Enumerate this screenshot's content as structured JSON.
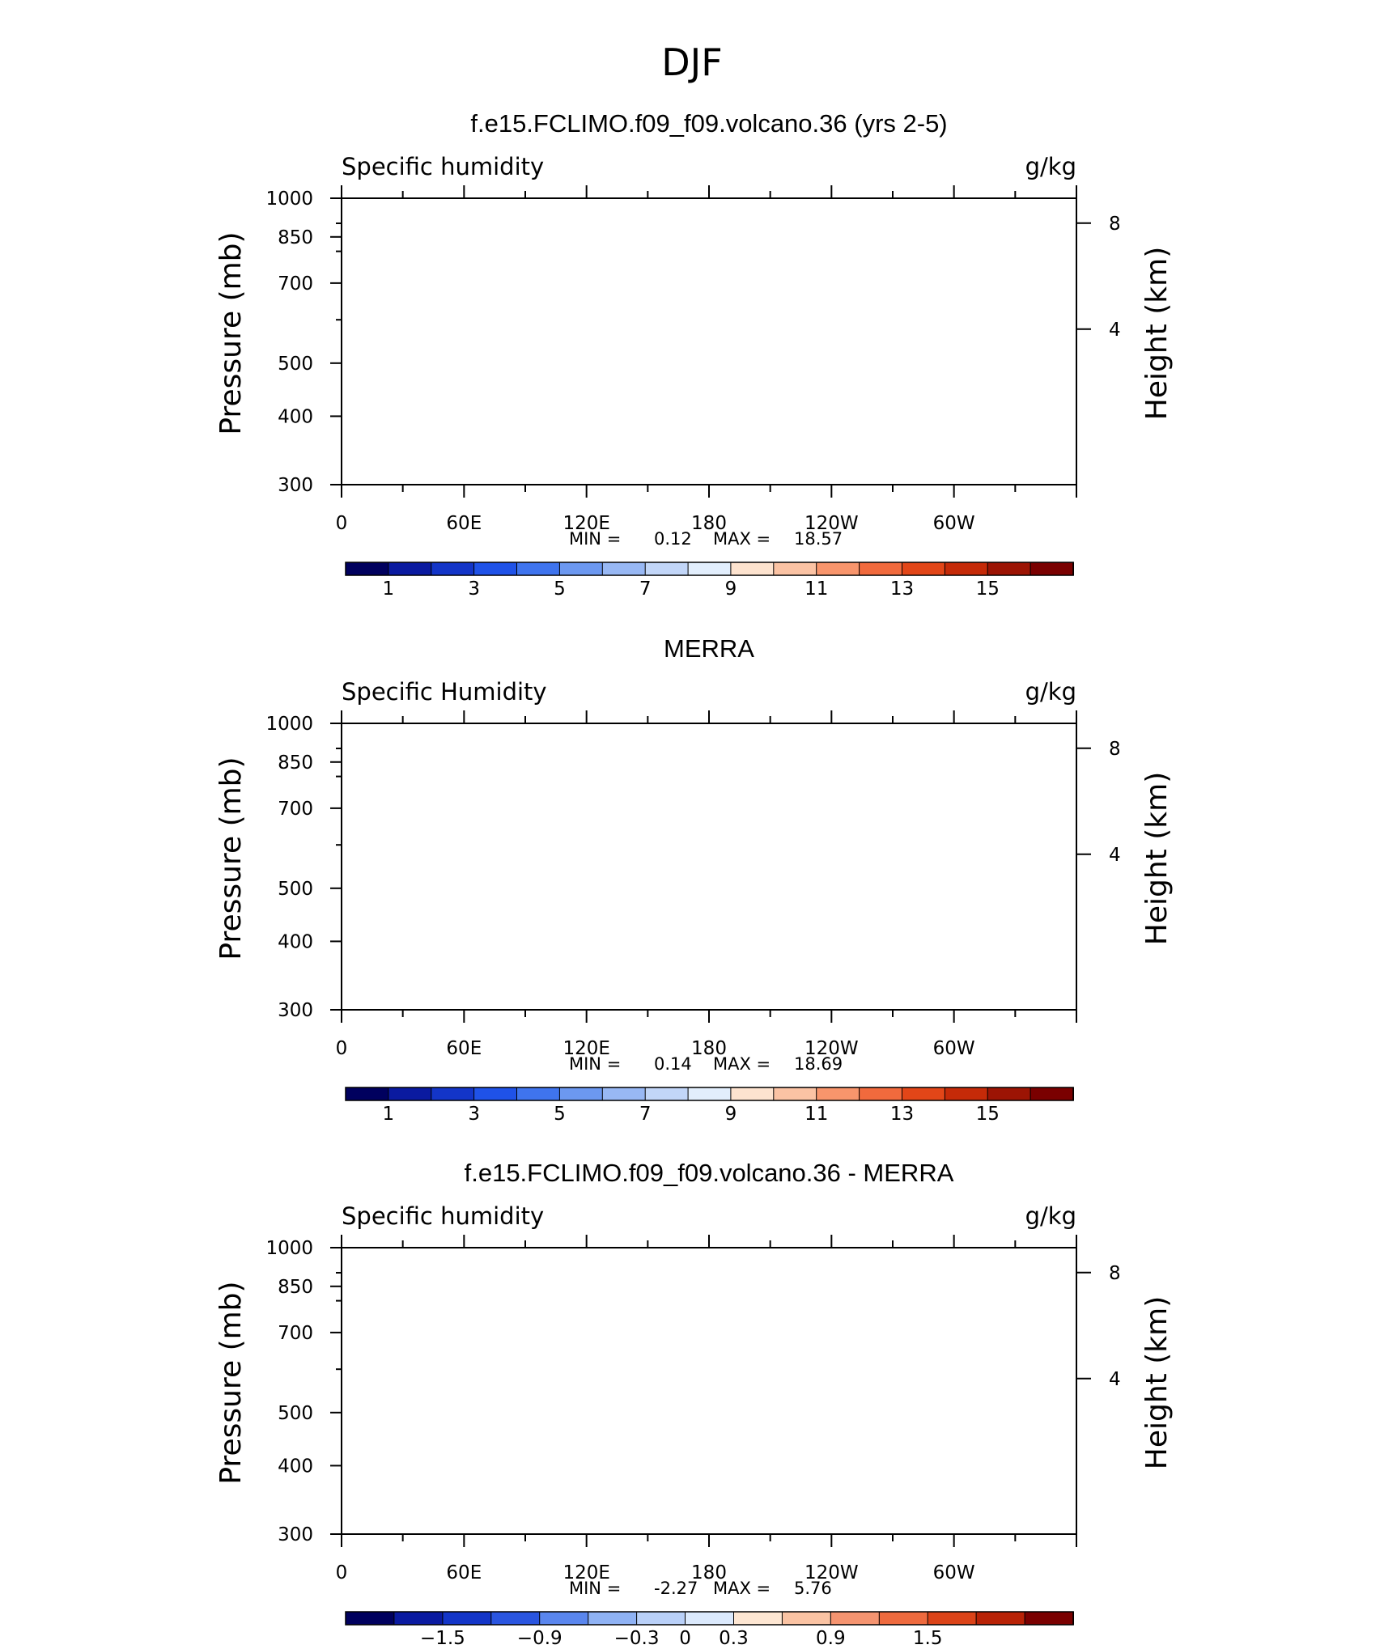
{
  "figure": {
    "title": "DJF"
  },
  "palette": {
    "seq": [
      "#00005e",
      "#0a1aa0",
      "#1335c8",
      "#1f52e8",
      "#3f74ee",
      "#6c98f0",
      "#98b8f4",
      "#c2d6f8",
      "#e2eefc",
      "#fde3cf",
      "#fbc3a4",
      "#f8956c",
      "#f16a3d",
      "#e24618",
      "#c52a08",
      "#9c1404",
      "#7a0000"
    ],
    "diff": [
      "#00005e",
      "#0a1aa0",
      "#1335c8",
      "#2a55e0",
      "#5a86ee",
      "#8fb2f4",
      "#b9d0f8",
      "#dbe9fc",
      "#fde6d2",
      "#fac3a3",
      "#f59470",
      "#ee6a3e",
      "#db4318",
      "#b82206",
      "#7a0000"
    ]
  },
  "chart_data": [
    {
      "type": "contour",
      "panel_title": "f.e15.FCLIMO.f09_f09.volcano.36 (yrs 2-5)",
      "left_label": "Specific humidity",
      "units": "g/kg",
      "ylabel": "Pressure (mb)",
      "y2label": "Height (km)",
      "yticks": [
        "300",
        "400",
        "500",
        "700",
        "850",
        "1000"
      ],
      "y2ticks": [
        "8",
        "4"
      ],
      "xticks": [
        "0",
        "60E",
        "120E",
        "180",
        "120W",
        "60W"
      ],
      "xlim": [
        0,
        360
      ],
      "ylim": [
        1000,
        300
      ],
      "min_label": "MIN =",
      "min_value": "0.12",
      "max_label": "MAX =",
      "max_value": "18.57",
      "colorbar_labels": [
        "1",
        "3",
        "5",
        "7",
        "9",
        "11",
        "13",
        "15"
      ],
      "colorbar_levels": [
        0,
        1,
        2,
        3,
        4,
        5,
        6,
        7,
        8,
        9,
        10,
        11,
        12,
        13,
        14,
        15,
        16
      ],
      "field": "model"
    },
    {
      "type": "contour",
      "panel_title": "MERRA",
      "left_label": "Specific Humidity",
      "units": "g/kg",
      "ylabel": "Pressure (mb)",
      "y2label": "Height (km)",
      "yticks": [
        "300",
        "400",
        "500",
        "700",
        "850",
        "1000"
      ],
      "y2ticks": [
        "8",
        "4"
      ],
      "xticks": [
        "0",
        "60E",
        "120E",
        "180",
        "120W",
        "60W"
      ],
      "xlim": [
        0,
        360
      ],
      "ylim": [
        1000,
        300
      ],
      "min_label": "MIN =",
      "min_value": "0.14",
      "max_label": "MAX =",
      "max_value": "18.69",
      "colorbar_labels": [
        "1",
        "3",
        "5",
        "7",
        "9",
        "11",
        "13",
        "15"
      ],
      "colorbar_levels": [
        0,
        1,
        2,
        3,
        4,
        5,
        6,
        7,
        8,
        9,
        10,
        11,
        12,
        13,
        14,
        15,
        16
      ],
      "field": "merra"
    },
    {
      "type": "contour",
      "panel_title": "f.e15.FCLIMO.f09_f09.volcano.36 - MERRA",
      "left_label": "Specific humidity",
      "units": "g/kg",
      "ylabel": "Pressure (mb)",
      "y2label": "Height (km)",
      "yticks": [
        "300",
        "400",
        "500",
        "700",
        "850",
        "1000"
      ],
      "y2ticks": [
        "8",
        "4"
      ],
      "xticks": [
        "0",
        "60E",
        "120E",
        "180",
        "120W",
        "60W"
      ],
      "xlim": [
        0,
        360
      ],
      "ylim": [
        1000,
        300
      ],
      "min_label": "MIN =",
      "min_value": "-2.27",
      "max_label": "MAX =",
      "max_value": "5.76",
      "colorbar_labels": [
        "−1.5",
        "−0.9",
        "−0.3",
        "0",
        "0.3",
        "0.9",
        "1.5"
      ],
      "colorbar_levels": [
        -2.1,
        -1.8,
        -1.5,
        -1.2,
        -0.9,
        -0.6,
        -0.3,
        0,
        0.3,
        0.6,
        0.9,
        1.2,
        1.5,
        1.8,
        2.1
      ],
      "field": "diff"
    }
  ]
}
